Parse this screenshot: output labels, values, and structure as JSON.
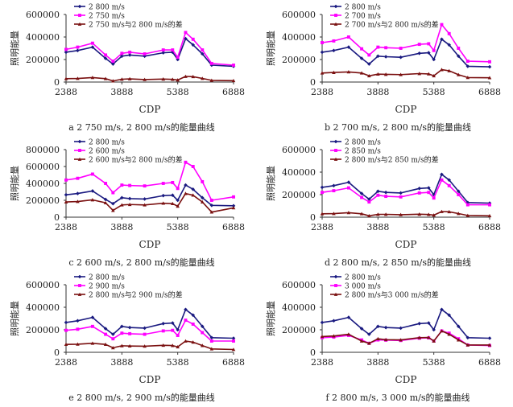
{
  "colors": {
    "s1": "#1a1a80",
    "s2": "#ff00ff",
    "s3": "#7a1010",
    "axis": "#333333"
  },
  "chart_data": [
    {
      "type": "line",
      "ylabel": "照明能量",
      "xlabel": "CDP",
      "ylim": [
        0,
        600000
      ],
      "yticks": [
        "0",
        "200000",
        "400000",
        "600000"
      ],
      "ytick_values": [
        0,
        200000,
        400000,
        600000
      ],
      "xlim": [
        2388,
        6888
      ],
      "xticks": [
        "2388",
        "3888",
        "5388",
        "6888"
      ],
      "xtick_values": [
        2388,
        3888,
        5388,
        6888
      ],
      "caption": "a 2 750 m/s, 2 800 m/s的能量曲线",
      "series": [
        {
          "name": "2 800 m/s",
          "x": [
            2388,
            2700,
            3100,
            3450,
            3650,
            3888,
            4100,
            4500,
            5000,
            5250,
            5388,
            5600,
            5800,
            6050,
            6300,
            6888
          ],
          "values": [
            265000,
            280000,
            310000,
            210000,
            160000,
            230000,
            240000,
            230000,
            260000,
            265000,
            200000,
            385000,
            330000,
            250000,
            150000,
            140000
          ]
        },
        {
          "name": "2 750 m/s",
          "x": [
            2388,
            2700,
            3100,
            3450,
            3650,
            3888,
            4100,
            4500,
            5000,
            5250,
            5388,
            5600,
            5800,
            6050,
            6300,
            6888
          ],
          "values": [
            290000,
            310000,
            345000,
            240000,
            185000,
            255000,
            265000,
            250000,
            285000,
            285000,
            220000,
            440000,
            380000,
            285000,
            165000,
            150000
          ]
        },
        {
          "name": "2 750 m/s与2 800 m/s的差",
          "x": [
            2388,
            2700,
            3100,
            3450,
            3650,
            3888,
            4100,
            4500,
            5000,
            5250,
            5388,
            5600,
            5800,
            6050,
            6300,
            6888
          ],
          "values": [
            30000,
            32000,
            40000,
            30000,
            10000,
            25000,
            28000,
            22000,
            26000,
            24000,
            18000,
            50000,
            48000,
            32000,
            15000,
            12000
          ]
        }
      ]
    },
    {
      "type": "line",
      "ylabel": "照明能量",
      "xlabel": "CDP",
      "ylim": [
        0,
        600000
      ],
      "yticks": [
        "0",
        "200000",
        "400000",
        "600000"
      ],
      "ytick_values": [
        0,
        200000,
        400000,
        600000
      ],
      "xlim": [
        2388,
        6888
      ],
      "xticks": [
        "2388",
        "3888",
        "5388",
        "6888"
      ],
      "xtick_values": [
        2388,
        3888,
        5388,
        6888
      ],
      "caption": "b 2 700 m/s, 2 800 m/s的能量曲线",
      "series": [
        {
          "name": "2 800 m/s",
          "x": [
            2388,
            2700,
            3100,
            3450,
            3650,
            3888,
            4100,
            4500,
            5000,
            5250,
            5388,
            5600,
            5800,
            6050,
            6300,
            6888
          ],
          "values": [
            265000,
            280000,
            310000,
            210000,
            160000,
            230000,
            225000,
            220000,
            255000,
            260000,
            200000,
            380000,
            330000,
            230000,
            140000,
            135000
          ]
        },
        {
          "name": "2 700 m/s",
          "x": [
            2388,
            2700,
            3100,
            3450,
            3650,
            3888,
            4100,
            4500,
            5000,
            5250,
            5388,
            5600,
            5800,
            6050,
            6300,
            6888
          ],
          "values": [
            350000,
            365000,
            400000,
            295000,
            240000,
            310000,
            305000,
            300000,
            335000,
            340000,
            280000,
            510000,
            430000,
            300000,
            185000,
            180000
          ]
        },
        {
          "name": "2 700 m/s与2 800 m/s的差",
          "x": [
            2388,
            2700,
            3100,
            3450,
            3650,
            3888,
            4100,
            4500,
            5000,
            5250,
            5388,
            5600,
            5800,
            6050,
            6300,
            6888
          ],
          "values": [
            80000,
            85000,
            90000,
            80000,
            55000,
            70000,
            68000,
            66000,
            75000,
            72000,
            55000,
            110000,
            100000,
            65000,
            40000,
            38000
          ]
        }
      ]
    },
    {
      "type": "line",
      "ylabel": "照明能量",
      "xlabel": "CDP",
      "ylim": [
        0,
        800000
      ],
      "yticks": [
        "0",
        "200000",
        "400000",
        "600000",
        "800000"
      ],
      "ytick_values": [
        0,
        200000,
        400000,
        600000,
        800000
      ],
      "xlim": [
        2388,
        6888
      ],
      "xticks": [
        "2388",
        "3888",
        "5388",
        "6888"
      ],
      "xtick_values": [
        2388,
        3888,
        5388,
        6888
      ],
      "caption": "c 2 600 m/s, 2 800 m/s的能量曲线",
      "series": [
        {
          "name": "2 800 m/s",
          "x": [
            2388,
            2700,
            3100,
            3450,
            3650,
            3888,
            4100,
            4500,
            5000,
            5250,
            5388,
            5600,
            5800,
            6050,
            6300,
            6888
          ],
          "values": [
            265000,
            280000,
            310000,
            210000,
            160000,
            230000,
            220000,
            215000,
            255000,
            260000,
            200000,
            380000,
            330000,
            230000,
            140000,
            135000
          ]
        },
        {
          "name": "2 600 m/s",
          "x": [
            2388,
            2700,
            3100,
            3450,
            3650,
            3888,
            4100,
            4500,
            5000,
            5250,
            5388,
            5600,
            5800,
            6050,
            6300,
            6888
          ],
          "values": [
            440000,
            460000,
            510000,
            400000,
            290000,
            380000,
            375000,
            370000,
            400000,
            410000,
            340000,
            650000,
            600000,
            420000,
            200000,
            240000
          ]
        },
        {
          "name": "2 600 m/s与2 800 m/s的差",
          "x": [
            2388,
            2700,
            3100,
            3450,
            3650,
            3888,
            4100,
            4500,
            5000,
            5250,
            5388,
            5600,
            5800,
            6050,
            6300,
            6888
          ],
          "values": [
            180000,
            185000,
            205000,
            170000,
            80000,
            145000,
            150000,
            145000,
            165000,
            160000,
            130000,
            280000,
            260000,
            180000,
            60000,
            110000
          ]
        }
      ]
    },
    {
      "type": "line",
      "ylabel": "照明能量",
      "xlabel": "CDP",
      "ylim": [
        0,
        600000
      ],
      "yticks": [
        "0",
        "200000",
        "400000",
        "600000"
      ],
      "ytick_values": [
        0,
        200000,
        400000,
        600000
      ],
      "xlim": [
        2388,
        6888
      ],
      "xticks": [
        "2388",
        "3888",
        "5388",
        "6888"
      ],
      "xtick_values": [
        2388,
        3888,
        5388,
        6888
      ],
      "caption": "d 2 800 m/s, 2 850 m/s的能量曲线",
      "series": [
        {
          "name": "2 800 m/s",
          "x": [
            2388,
            2700,
            3100,
            3450,
            3650,
            3888,
            4100,
            4500,
            5000,
            5250,
            5388,
            5600,
            5800,
            6050,
            6300,
            6888
          ],
          "values": [
            265000,
            280000,
            310000,
            210000,
            160000,
            230000,
            220000,
            215000,
            255000,
            260000,
            200000,
            380000,
            330000,
            230000,
            130000,
            125000
          ]
        },
        {
          "name": "2 850 m/s",
          "x": [
            2388,
            2700,
            3100,
            3450,
            3650,
            3888,
            4100,
            4500,
            5000,
            5250,
            5388,
            5600,
            5800,
            6050,
            6300,
            6888
          ],
          "values": [
            220000,
            235000,
            260000,
            175000,
            135000,
            195000,
            185000,
            180000,
            215000,
            220000,
            170000,
            330000,
            280000,
            200000,
            110000,
            110000
          ]
        },
        {
          "name": "2 800 m/s与2 850 m/s的差",
          "x": [
            2388,
            2700,
            3100,
            3450,
            3650,
            3888,
            4100,
            4500,
            5000,
            5250,
            5388,
            5600,
            5800,
            6050,
            6300,
            6888
          ],
          "values": [
            30000,
            32000,
            40000,
            30000,
            12000,
            25000,
            25000,
            22000,
            26000,
            24000,
            18000,
            50000,
            48000,
            32000,
            15000,
            12000
          ]
        }
      ]
    },
    {
      "type": "line",
      "ylabel": "照明能量",
      "xlabel": "CDP",
      "ylim": [
        0,
        600000
      ],
      "yticks": [
        "0",
        "200000",
        "400000",
        "600000"
      ],
      "ytick_values": [
        0,
        200000,
        400000,
        600000
      ],
      "xlim": [
        2388,
        6888
      ],
      "xticks": [
        "2388",
        "3888",
        "5388",
        "6888"
      ],
      "xtick_values": [
        2388,
        3888,
        5388,
        6888
      ],
      "caption": "e 2 800 m/s, 2 900 m/s的能量曲线",
      "series": [
        {
          "name": "2 800 m/s",
          "x": [
            2388,
            2700,
            3100,
            3450,
            3650,
            3888,
            4100,
            4500,
            5000,
            5250,
            5388,
            5600,
            5800,
            6050,
            6300,
            6888
          ],
          "values": [
            265000,
            280000,
            310000,
            210000,
            160000,
            230000,
            220000,
            215000,
            255000,
            260000,
            200000,
            380000,
            330000,
            230000,
            130000,
            125000
          ]
        },
        {
          "name": "2 900 m/s",
          "x": [
            2388,
            2700,
            3100,
            3450,
            3650,
            3888,
            4100,
            4500,
            5000,
            5250,
            5388,
            5600,
            5800,
            6050,
            6300,
            6888
          ],
          "values": [
            195000,
            205000,
            230000,
            160000,
            120000,
            170000,
            165000,
            160000,
            190000,
            195000,
            150000,
            285000,
            250000,
            175000,
            100000,
            100000
          ]
        },
        {
          "name": "2 800 m/s与2 900 m/s的差",
          "x": [
            2388,
            2700,
            3100,
            3450,
            3650,
            3888,
            4100,
            4500,
            5000,
            5250,
            5388,
            5600,
            5800,
            6050,
            6300,
            6888
          ],
          "values": [
            70000,
            72000,
            80000,
            70000,
            40000,
            58000,
            56000,
            54000,
            62000,
            60000,
            48000,
            100000,
            90000,
            60000,
            30000,
            25000
          ]
        }
      ]
    },
    {
      "type": "line",
      "ylabel": "照明能量",
      "xlabel": "CDP",
      "ylim": [
        0,
        600000
      ],
      "yticks": [
        "0",
        "200000",
        "400000",
        "600000"
      ],
      "ytick_values": [
        0,
        200000,
        400000,
        600000
      ],
      "xlim": [
        2388,
        6888
      ],
      "xticks": [
        "2388",
        "3888",
        "5388",
        "6888"
      ],
      "xtick_values": [
        2388,
        3888,
        5388,
        6888
      ],
      "caption": "f 2 800 m/s, 3 000 m/s的能量曲线",
      "series": [
        {
          "name": "2 800 m/s",
          "x": [
            2388,
            2700,
            3100,
            3450,
            3650,
            3888,
            4100,
            4500,
            5000,
            5250,
            5388,
            5600,
            5800,
            6050,
            6300,
            6888
          ],
          "values": [
            265000,
            280000,
            310000,
            210000,
            160000,
            230000,
            220000,
            215000,
            255000,
            260000,
            200000,
            380000,
            330000,
            230000,
            130000,
            125000
          ]
        },
        {
          "name": "3 000 m/s",
          "x": [
            2388,
            2700,
            3100,
            3450,
            3650,
            3888,
            4100,
            4500,
            5000,
            5250,
            5388,
            5600,
            5800,
            6050,
            6300,
            6888
          ],
          "values": [
            130000,
            135000,
            150000,
            110000,
            80000,
            110000,
            108000,
            105000,
            125000,
            128000,
            100000,
            190000,
            170000,
            120000,
            65000,
            60000
          ]
        },
        {
          "name": "2 800 m/s与3 000 m/s的差",
          "x": [
            2388,
            2700,
            3100,
            3450,
            3650,
            3888,
            4100,
            4500,
            5000,
            5250,
            5388,
            5600,
            5800,
            6050,
            6300,
            6888
          ],
          "values": [
            140000,
            145000,
            160000,
            100000,
            80000,
            120000,
            112000,
            110000,
            130000,
            132000,
            100000,
            190000,
            160000,
            110000,
            65000,
            65000
          ]
        }
      ]
    }
  ]
}
